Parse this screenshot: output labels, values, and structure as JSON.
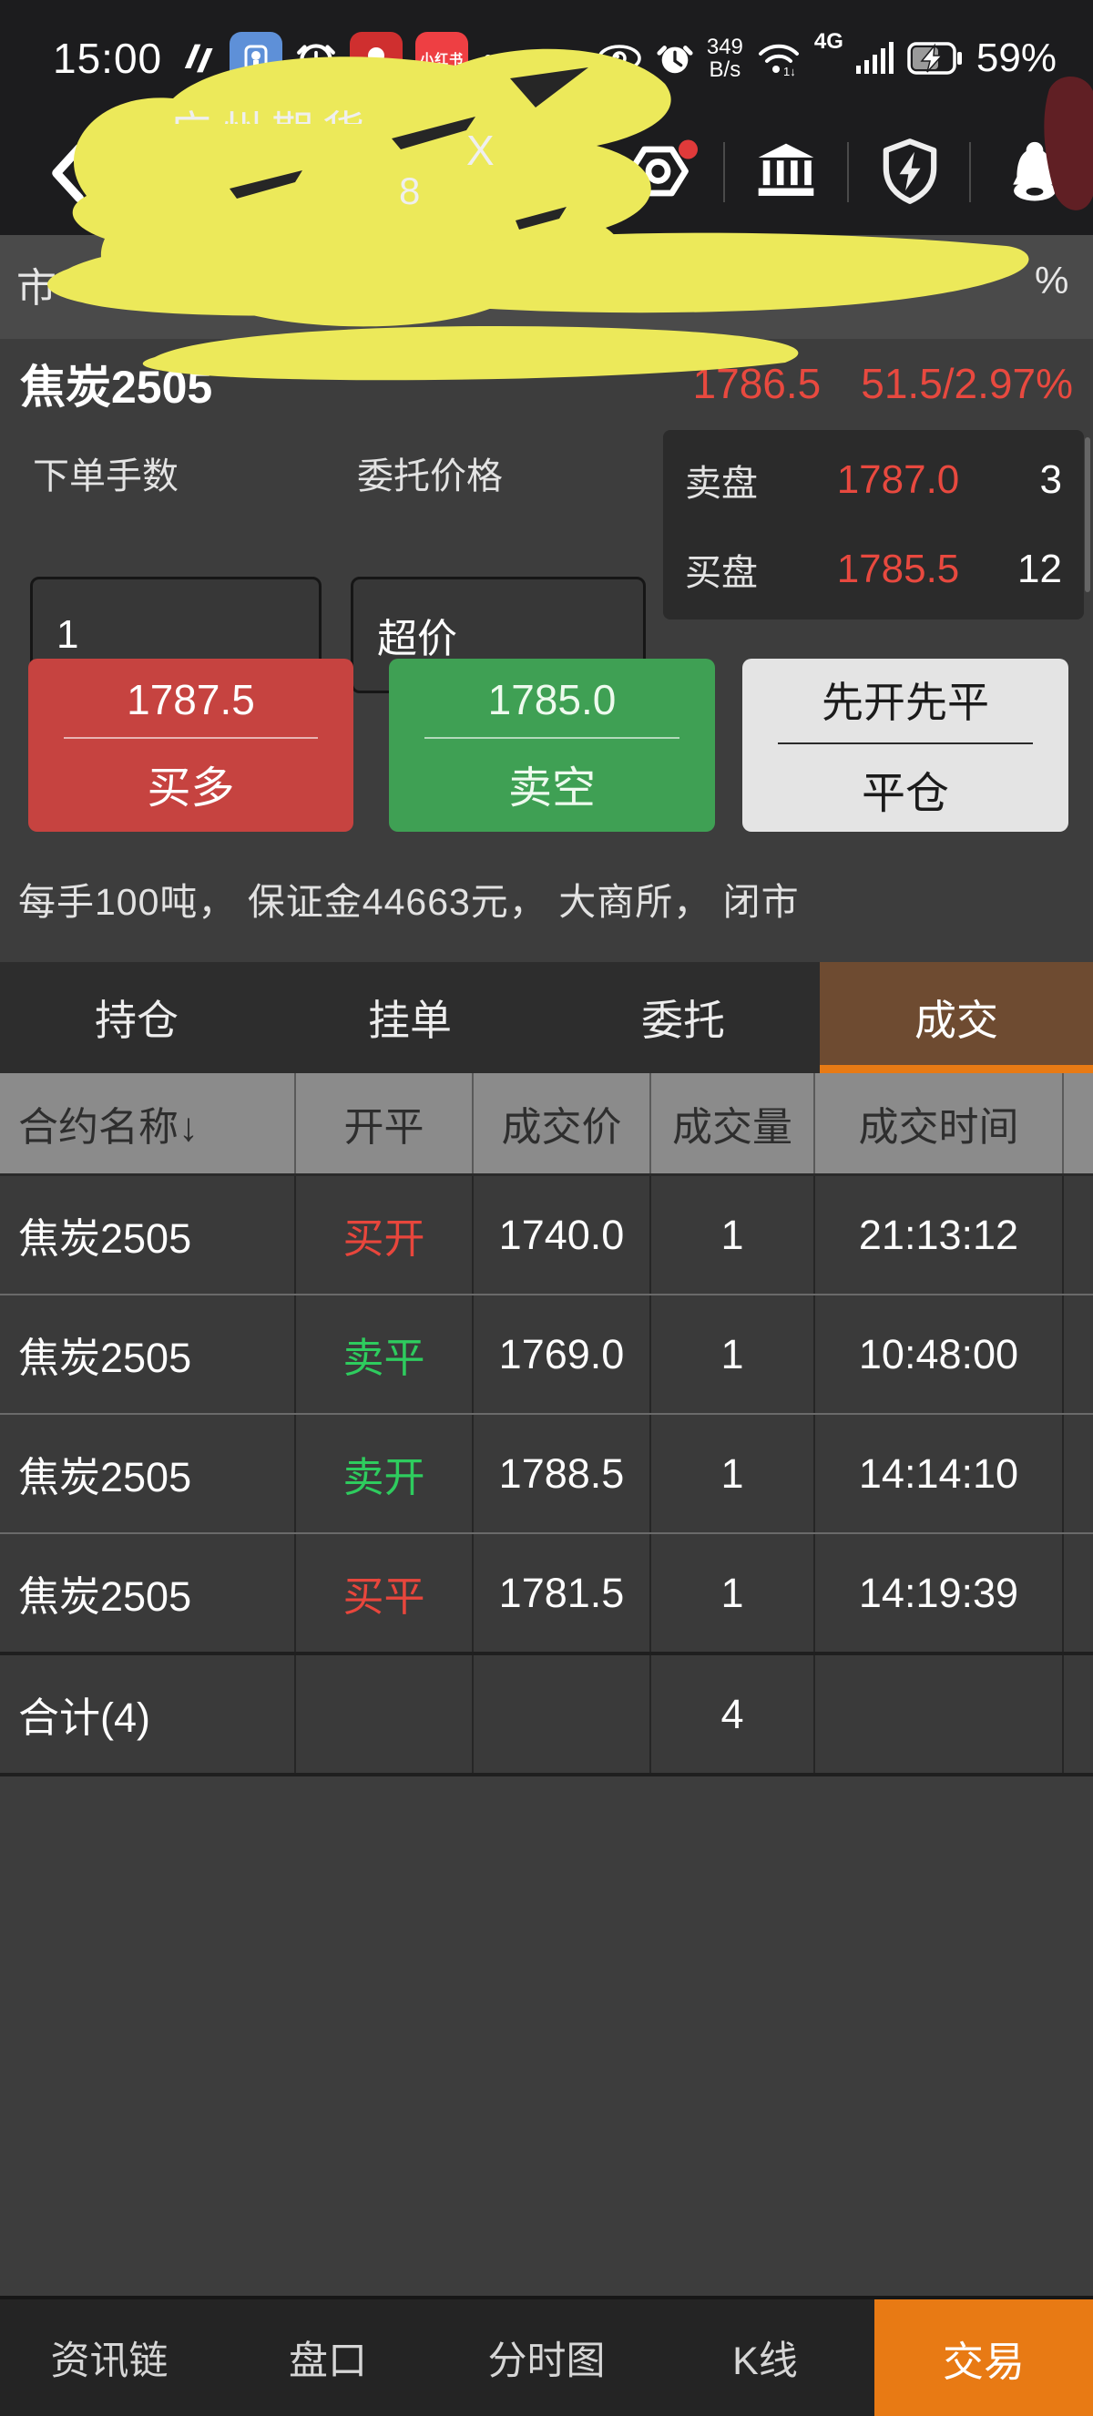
{
  "colors": {
    "accent_orange": "#e87a14",
    "price_red": "#e8493f",
    "dir_buy_red": "#e8463c",
    "dir_sell_green": "#2ecc5e",
    "buy_button": "#c64340",
    "sell_button": "#3fa054",
    "close_button": "#e4e4e4",
    "active_tab_bg": "#6e4b31",
    "redaction_yellow": "#ece95a",
    "redaction_dark_red": "#601f24"
  },
  "status_bar": {
    "time": "15:00",
    "net_speed_value": "349",
    "net_speed_unit": "B/s",
    "network_type": "4G",
    "wifi_sub": "1↓",
    "battery_percent": "59%",
    "xiaohongshu_label": "小红书"
  },
  "nav_bar": {
    "title_fragment_top": "广州期货",
    "title_fragment_x": "X",
    "title_fragment_8": "8"
  },
  "account_bar": {
    "fragment_left": "市",
    "fragment_right": "%"
  },
  "contract": {
    "name": "焦炭2505",
    "last_price": "1786.5",
    "change": "51.5/2.97%"
  },
  "order_panel": {
    "lots_label": "下单手数",
    "lots_value": "1",
    "price_label": "委托价格",
    "price_value": "超价",
    "ask_label": "卖盘",
    "ask_price": "1787.0",
    "ask_volume": "3",
    "bid_label": "买盘",
    "bid_price": "1785.5",
    "bid_volume": "12",
    "buy_price": "1787.5",
    "buy_label": "买多",
    "sell_price": "1785.0",
    "sell_label": "卖空",
    "close_mode": "先开先平",
    "close_label": "平仓",
    "contract_info": "每手100吨， 保证金44663元， 大商所， 闭市"
  },
  "tabs": [
    {
      "label": "持仓",
      "active": false
    },
    {
      "label": "挂单",
      "active": false
    },
    {
      "label": "委托",
      "active": false
    },
    {
      "label": "成交",
      "active": true
    }
  ],
  "trades_table": {
    "columns": [
      "合约名称↓",
      "开平",
      "成交价",
      "成交量",
      "成交时间",
      ""
    ],
    "rows": [
      {
        "name": "焦炭2505",
        "direction": "买开",
        "side": "buy",
        "price": "1740.0",
        "volume": "1",
        "time": "21:13:12"
      },
      {
        "name": "焦炭2505",
        "direction": "卖平",
        "side": "sell",
        "price": "1769.0",
        "volume": "1",
        "time": "10:48:00"
      },
      {
        "name": "焦炭2505",
        "direction": "卖开",
        "side": "sell",
        "price": "1788.5",
        "volume": "1",
        "time": "14:14:10"
      },
      {
        "name": "焦炭2505",
        "direction": "买平",
        "side": "buy",
        "price": "1781.5",
        "volume": "1",
        "time": "14:19:39"
      }
    ],
    "total": {
      "label": "合计(4)",
      "volume": "4"
    }
  },
  "bottom_nav": [
    {
      "label": "资讯链",
      "active": false
    },
    {
      "label": "盘口",
      "active": false
    },
    {
      "label": "分时图",
      "active": false
    },
    {
      "label": "K线",
      "active": false
    },
    {
      "label": "交易",
      "active": true
    }
  ]
}
